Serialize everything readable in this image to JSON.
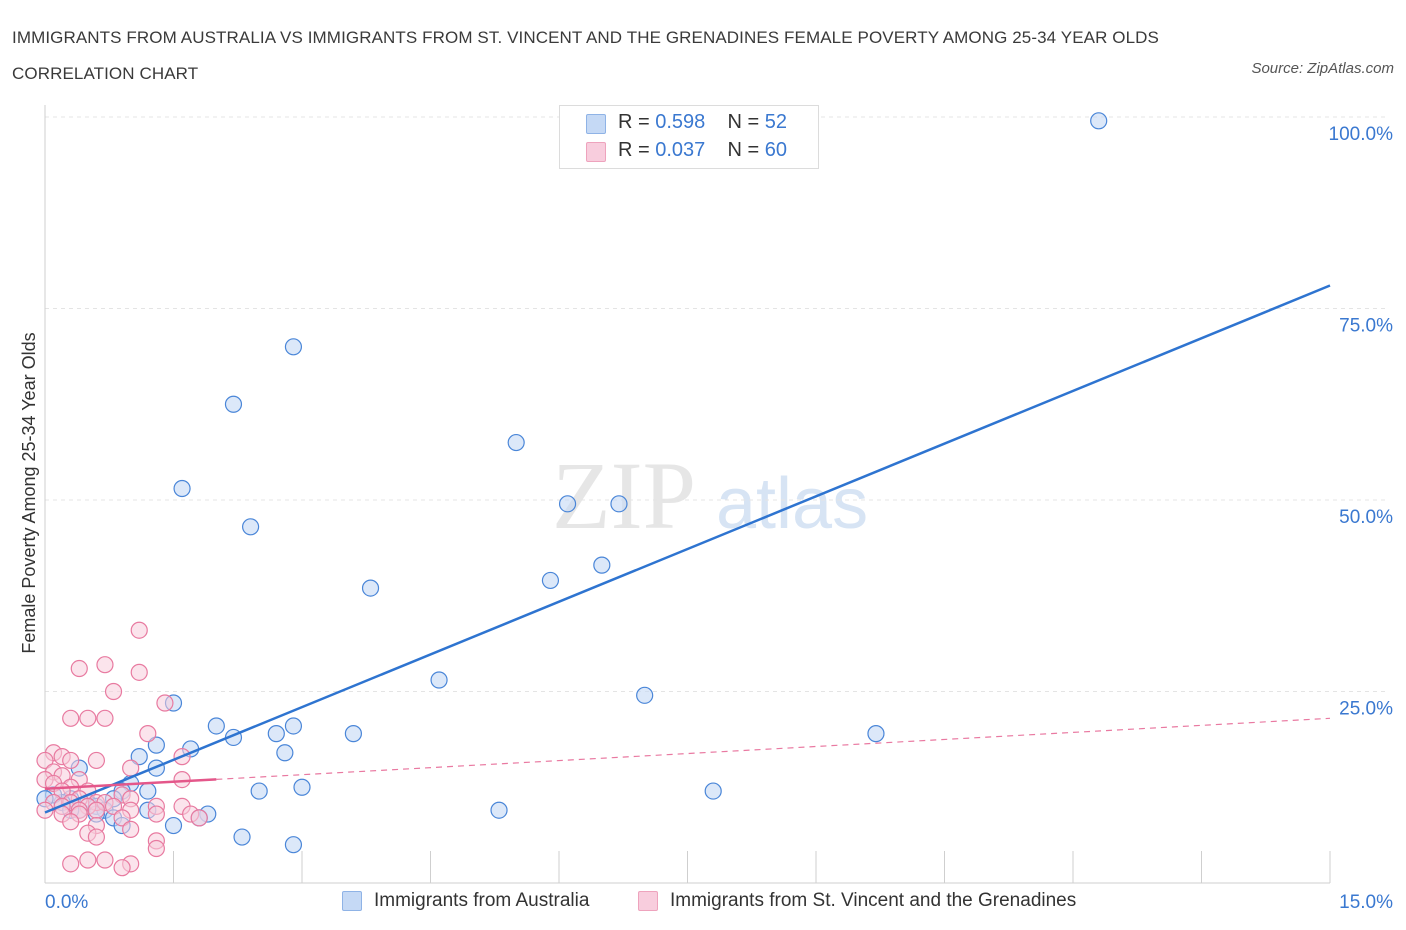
{
  "title": "IMMIGRANTS FROM AUSTRALIA VS IMMIGRANTS FROM ST. VINCENT AND THE GRENADINES FEMALE POVERTY AMONG 25-34 YEAR OLDS CORRELATION CHART",
  "source": "Source: ZipAtlas.com",
  "watermark": {
    "zip": "ZIP",
    "atlas": "atlas"
  },
  "legend": {
    "r_label": "R =",
    "n_label": "N =",
    "australia": {
      "r": "0.598",
      "n": "52"
    },
    "svg": {
      "r": "0.037",
      "n": "60"
    }
  },
  "chart_data": {
    "type": "scatter",
    "title": "IMMIGRANTS FROM AUSTRALIA VS IMMIGRANTS FROM ST. VINCENT AND THE GRENADINES FEMALE POVERTY AMONG 25-34 YEAR OLDS CORRELATION CHART",
    "xlabel": "",
    "ylabel": "Female Poverty Among 25-34 Year Olds",
    "xlim": [
      0,
      15
    ],
    "ylim": [
      0,
      100
    ],
    "x_tick_labels": [
      "0.0%",
      "15.0%"
    ],
    "y_ticks": [
      25,
      50,
      75,
      100
    ],
    "y_tick_labels": [
      "25.0%",
      "50.0%",
      "75.0%",
      "100.0%"
    ],
    "grid": true,
    "colors": {
      "australia": "#4a86d8",
      "svg": "#e87aa0",
      "australia_fill": "#c5d9f5",
      "svg_fill": "#f8cddd"
    },
    "series": [
      {
        "name": "Immigrants from Australia",
        "r": 0.598,
        "n": 52,
        "trend": {
          "x": [
            0,
            15
          ],
          "y": [
            9.2,
            78.0
          ]
        },
        "points": [
          [
            12.3,
            99.5
          ],
          [
            2.9,
            70.0
          ],
          [
            2.2,
            62.5
          ],
          [
            5.5,
            57.5
          ],
          [
            1.6,
            51.5
          ],
          [
            2.4,
            46.5
          ],
          [
            6.1,
            49.5
          ],
          [
            6.7,
            49.5
          ],
          [
            3.8,
            38.5
          ],
          [
            5.9,
            39.5
          ],
          [
            6.5,
            41.5
          ],
          [
            4.6,
            26.5
          ],
          [
            7.0,
            24.5
          ],
          [
            1.5,
            23.5
          ],
          [
            2.0,
            20.5
          ],
          [
            2.9,
            20.5
          ],
          [
            2.7,
            19.5
          ],
          [
            3.6,
            19.5
          ],
          [
            2.2,
            19.0
          ],
          [
            9.7,
            19.5
          ],
          [
            1.3,
            18.0
          ],
          [
            1.7,
            17.5
          ],
          [
            2.8,
            17.0
          ],
          [
            1.1,
            16.5
          ],
          [
            1.3,
            15.0
          ],
          [
            0.4,
            15.0
          ],
          [
            1.0,
            13.0
          ],
          [
            0.9,
            12.0
          ],
          [
            2.5,
            12.0
          ],
          [
            3.0,
            12.5
          ],
          [
            7.8,
            12.0
          ],
          [
            0.8,
            11.0
          ],
          [
            1.2,
            12.0
          ],
          [
            0.5,
            10.5
          ],
          [
            0.3,
            11.0
          ],
          [
            0.2,
            10.5
          ],
          [
            0.6,
            10.0
          ],
          [
            0.7,
            9.5
          ],
          [
            0.4,
            9.5
          ],
          [
            0.3,
            9.5
          ],
          [
            0.6,
            9.0
          ],
          [
            0.1,
            11.5
          ],
          [
            0.0,
            11.0
          ],
          [
            1.2,
            9.5
          ],
          [
            1.9,
            9.0
          ],
          [
            1.8,
            8.5
          ],
          [
            0.8,
            8.5
          ],
          [
            5.3,
            9.5
          ],
          [
            0.9,
            7.5
          ],
          [
            1.5,
            7.5
          ],
          [
            2.3,
            6.0
          ],
          [
            2.9,
            5.0
          ]
        ]
      },
      {
        "name": "Immigrants from St. Vincent and the Grenadines",
        "r": 0.037,
        "n": 60,
        "trend": {
          "x": [
            0,
            15
          ],
          "y": [
            12.3,
            21.5
          ]
        },
        "points": [
          [
            1.1,
            33.0
          ],
          [
            0.7,
            28.5
          ],
          [
            0.4,
            28.0
          ],
          [
            1.1,
            27.5
          ],
          [
            0.8,
            25.0
          ],
          [
            1.4,
            23.5
          ],
          [
            0.3,
            21.5
          ],
          [
            0.5,
            21.5
          ],
          [
            0.7,
            21.5
          ],
          [
            1.2,
            19.5
          ],
          [
            1.6,
            16.5
          ],
          [
            0.1,
            17.0
          ],
          [
            0.2,
            16.5
          ],
          [
            0.3,
            16.0
          ],
          [
            0.6,
            16.0
          ],
          [
            0.0,
            16.0
          ],
          [
            1.0,
            15.0
          ],
          [
            0.1,
            14.5
          ],
          [
            0.2,
            14.0
          ],
          [
            0.4,
            13.5
          ],
          [
            1.6,
            13.5
          ],
          [
            0.0,
            13.5
          ],
          [
            0.1,
            13.0
          ],
          [
            0.3,
            12.5
          ],
          [
            0.2,
            12.0
          ],
          [
            0.5,
            12.0
          ],
          [
            0.9,
            11.5
          ],
          [
            1.0,
            11.0
          ],
          [
            0.4,
            11.0
          ],
          [
            0.6,
            10.5
          ],
          [
            0.7,
            10.5
          ],
          [
            0.3,
            10.5
          ],
          [
            0.1,
            10.5
          ],
          [
            0.5,
            10.0
          ],
          [
            0.8,
            10.0
          ],
          [
            1.3,
            10.0
          ],
          [
            1.6,
            10.0
          ],
          [
            0.2,
            10.0
          ],
          [
            0.6,
            9.5
          ],
          [
            0.4,
            9.5
          ],
          [
            1.0,
            9.5
          ],
          [
            1.7,
            9.0
          ],
          [
            1.3,
            9.0
          ],
          [
            0.0,
            9.5
          ],
          [
            0.2,
            9.0
          ],
          [
            0.4,
            9.0
          ],
          [
            0.9,
            8.5
          ],
          [
            1.8,
            8.5
          ],
          [
            0.3,
            8.0
          ],
          [
            0.6,
            7.5
          ],
          [
            1.0,
            7.0
          ],
          [
            0.5,
            6.5
          ],
          [
            0.6,
            6.0
          ],
          [
            1.3,
            5.5
          ],
          [
            1.3,
            4.5
          ],
          [
            0.5,
            3.0
          ],
          [
            0.7,
            3.0
          ],
          [
            0.3,
            2.5
          ],
          [
            1.0,
            2.5
          ],
          [
            0.9,
            2.0
          ]
        ]
      }
    ]
  },
  "bottom_legend": {
    "australia": "Immigrants from Australia",
    "svg": "Immigrants from St. Vincent and the Grenadines"
  }
}
